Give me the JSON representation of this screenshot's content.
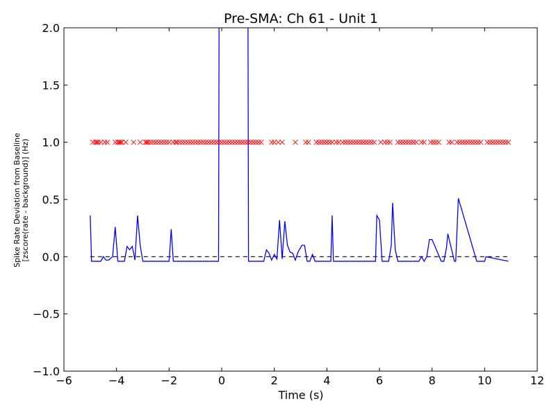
{
  "chart_data": {
    "type": "line",
    "title": "Pre-SMA: Ch 61 - Unit 1",
    "xlabel": "Time (s)",
    "ylabel_lines": [
      "Spike Rate Deviation from Baseline",
      "[zscore(rate - background)] (Hz)"
    ],
    "xlim": [
      -6,
      12
    ],
    "ylim": [
      -1.0,
      2.0
    ],
    "xticks": [
      -6,
      -4,
      -2,
      0,
      2,
      4,
      6,
      8,
      10,
      12
    ],
    "xtick_labels": [
      "−6",
      "−4",
      "−2",
      "0",
      "2",
      "4",
      "6",
      "8",
      "10",
      "12"
    ],
    "yticks": [
      -1.0,
      -0.5,
      0.0,
      0.5,
      1.0,
      1.5,
      2.0
    ],
    "ytick_labels": [
      "−1.0",
      "−0.5",
      "0.0",
      "0.5",
      "1.0",
      "1.5",
      "2.0"
    ],
    "colors": {
      "line": "#0000ff",
      "markers": "#ff0000",
      "baseline": "#000000"
    },
    "baseline_y": 0,
    "baseline_x": [
      -5,
      10.9
    ],
    "series": [
      {
        "style": "line",
        "x": [
          -5.0,
          -4.95,
          -4.9,
          -4.6,
          -4.5,
          -4.4,
          -4.3,
          -4.15,
          -4.05,
          -3.95,
          -3.7,
          -3.6,
          -3.5,
          -3.4,
          -3.3,
          -3.2,
          -3.1,
          -3.0,
          -2.0,
          -1.92,
          -1.84,
          -0.12,
          -0.1,
          -0.02,
          0.98,
          1.0,
          1.02,
          1.6,
          1.7,
          1.8,
          1.9,
          2.0,
          2.1,
          2.2,
          2.3,
          2.4,
          2.5,
          2.6,
          2.7,
          2.8,
          2.9,
          3.05,
          3.15,
          3.25,
          3.35,
          3.45,
          3.55,
          3.75,
          4.15,
          4.2,
          4.25,
          4.35,
          5.85,
          5.9,
          6.0,
          6.1,
          6.35,
          6.45,
          6.5,
          6.6,
          6.7,
          7.3,
          7.5,
          7.6,
          7.7,
          7.8,
          7.9,
          8.0,
          8.35,
          8.45,
          8.55,
          8.6,
          8.85,
          8.9,
          9.0,
          9.7,
          9.9,
          10.0,
          10.05,
          10.9
        ],
        "y": [
          0.36,
          -0.04,
          -0.04,
          -0.04,
          0.0,
          -0.03,
          -0.03,
          0.0,
          0.26,
          -0.04,
          -0.04,
          0.09,
          0.06,
          0.09,
          -0.03,
          0.36,
          0.1,
          -0.04,
          -0.04,
          0.24,
          -0.04,
          -0.04,
          2.05,
          2.05,
          2.05,
          2.05,
          -0.04,
          -0.04,
          0.06,
          0.03,
          -0.03,
          0.02,
          -0.02,
          0.32,
          -0.02,
          0.31,
          0.1,
          0.04,
          0.03,
          -0.03,
          0.04,
          0.1,
          0.1,
          -0.04,
          -0.04,
          0.02,
          -0.04,
          -0.04,
          -0.04,
          0.36,
          -0.04,
          -0.04,
          -0.04,
          0.36,
          0.32,
          -0.04,
          -0.04,
          0.1,
          0.47,
          0.06,
          -0.04,
          -0.04,
          -0.04,
          0.0,
          -0.04,
          0.0,
          0.15,
          0.15,
          -0.04,
          -0.04,
          0.08,
          0.2,
          -0.04,
          -0.04,
          0.51,
          -0.04,
          -0.04,
          -0.04,
          0.0,
          -0.04
        ]
      },
      {
        "style": "markers",
        "marker": "x",
        "y": 1.0,
        "x": [
          -4.9,
          -4.8,
          -4.75,
          -4.7,
          -4.6,
          -4.45,
          -4.35,
          -4.05,
          -3.95,
          -3.9,
          -3.85,
          -3.8,
          -3.65,
          -3.35,
          -3.1,
          -2.9,
          -2.85,
          -2.8,
          -2.7,
          -2.6,
          -2.5,
          -2.4,
          -2.3,
          -2.2,
          -2.1,
          -2.0,
          -1.85,
          -1.75,
          -1.7,
          -1.6,
          -1.5,
          -1.4,
          -1.3,
          -1.2,
          -1.1,
          -1.0,
          -0.9,
          -0.8,
          -0.7,
          -0.6,
          -0.5,
          -0.4,
          -0.3,
          -0.2,
          -0.1,
          0.0,
          0.1,
          0.2,
          0.3,
          0.4,
          0.5,
          0.6,
          0.7,
          0.8,
          0.9,
          1.0,
          1.1,
          1.2,
          1.3,
          1.4,
          1.5,
          1.9,
          2.0,
          2.15,
          2.3,
          2.8,
          3.2,
          3.3,
          3.6,
          3.7,
          3.8,
          3.9,
          4.0,
          4.1,
          4.2,
          4.35,
          4.45,
          4.6,
          4.7,
          4.8,
          4.9,
          5.0,
          5.1,
          5.2,
          5.3,
          5.4,
          5.5,
          5.6,
          5.7,
          5.8,
          6.05,
          6.2,
          6.3,
          6.4,
          6.7,
          6.8,
          6.9,
          7.0,
          7.1,
          7.2,
          7.3,
          7.4,
          7.6,
          7.7,
          7.95,
          8.05,
          8.15,
          8.25,
          8.65,
          8.75,
          8.95,
          9.05,
          9.15,
          9.25,
          9.35,
          9.45,
          9.55,
          9.65,
          9.75,
          9.85,
          10.1,
          10.2,
          10.3,
          10.4,
          10.5,
          10.6,
          10.7,
          10.8,
          10.9
        ]
      }
    ]
  }
}
